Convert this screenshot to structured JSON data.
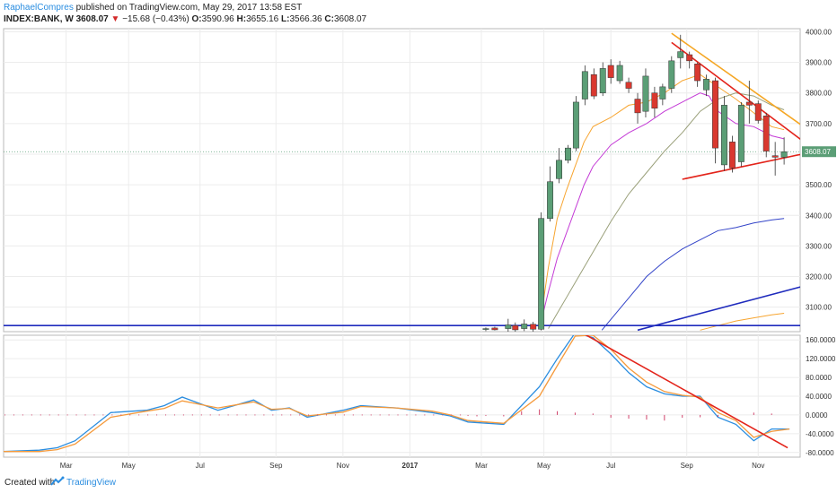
{
  "header": {
    "author": "RaphaelCompres",
    "published_text": " published on TradingView.com, May 29, 2017 13:58 EST",
    "symbol": "INDEX:BANK",
    "interval": ", W",
    "last_price": "3608.07",
    "change_arrow": "▼",
    "change": "−15.68 (−0.43%)",
    "open_label": "O:",
    "open": "3590.96",
    "high_label": "H:",
    "high": "3655.16",
    "low_label": "L:",
    "low": "3566.36",
    "close_label": "C:",
    "close": "3608.07"
  },
  "footer": {
    "created_with": "Created with",
    "brand": "TradingView"
  },
  "colors": {
    "up": "#5b9e76",
    "down": "#d9382f",
    "red_line": "#e3241b",
    "orange_line": "#f5a623",
    "blue_line": "#1f2bbd",
    "ma_orange": "#f7a530",
    "ma_purple": "#c43bd6",
    "ma_olive": "#9aa07a",
    "ma_blue": "#3344c8",
    "ind_blue": "#2a8de0",
    "ind_orange": "#f59a3c",
    "histogram": "#d0426a"
  },
  "chart_data": [
    {
      "type": "candlestick",
      "title": "INDEX:BANK, W",
      "price_ticks": [
        "4000.00",
        "3900.00",
        "3800.00",
        "3700.00",
        "3600.00",
        "3500.00",
        "3400.00",
        "3300.00",
        "3200.00",
        "3100.00"
      ],
      "ylim": [
        3020,
        4010
      ],
      "last_price_label": "3608.07",
      "x_ticks": [
        "Mar",
        "May",
        "Jul",
        "Sep",
        "Nov",
        "2017",
        "Mar",
        "May",
        "Jul",
        "Sep",
        "Nov"
      ],
      "candles": [
        {
          "x": 54,
          "o": 3028,
          "h": 3034,
          "l": 3022,
          "c": 3030
        },
        {
          "x": 55,
          "o": 3032,
          "h": 3036,
          "l": 3024,
          "c": 3026
        },
        {
          "x": 56.5,
          "o": 3030,
          "h": 3062,
          "l": 3020,
          "c": 3042
        },
        {
          "x": 57.3,
          "o": 3040,
          "h": 3050,
          "l": 3020,
          "c": 3026
        },
        {
          "x": 58.3,
          "o": 3030,
          "h": 3060,
          "l": 3022,
          "c": 3045
        },
        {
          "x": 59.3,
          "o": 3044,
          "h": 3052,
          "l": 3018,
          "c": 3028
        },
        {
          "x": 60.2,
          "o": 3028,
          "h": 3410,
          "l": 3024,
          "c": 3390
        },
        {
          "x": 61.2,
          "o": 3390,
          "h": 3560,
          "l": 3380,
          "c": 3510
        },
        {
          "x": 62.2,
          "o": 3520,
          "h": 3620,
          "l": 3505,
          "c": 3580
        },
        {
          "x": 63.2,
          "o": 3580,
          "h": 3630,
          "l": 3570,
          "c": 3620
        },
        {
          "x": 64.1,
          "o": 3620,
          "h": 3790,
          "l": 3610,
          "c": 3770
        },
        {
          "x": 65.1,
          "o": 3780,
          "h": 3890,
          "l": 3760,
          "c": 3870
        },
        {
          "x": 66.1,
          "o": 3860,
          "h": 3880,
          "l": 3780,
          "c": 3790
        },
        {
          "x": 67.1,
          "o": 3800,
          "h": 3900,
          "l": 3790,
          "c": 3880
        },
        {
          "x": 68.0,
          "o": 3890,
          "h": 3910,
          "l": 3830,
          "c": 3850
        },
        {
          "x": 69.0,
          "o": 3840,
          "h": 3905,
          "l": 3830,
          "c": 3890
        },
        {
          "x": 70.0,
          "o": 3835,
          "h": 3850,
          "l": 3800,
          "c": 3815
        },
        {
          "x": 71.0,
          "o": 3780,
          "h": 3800,
          "l": 3700,
          "c": 3735
        },
        {
          "x": 71.9,
          "o": 3740,
          "h": 3880,
          "l": 3720,
          "c": 3855
        },
        {
          "x": 72.9,
          "o": 3800,
          "h": 3820,
          "l": 3720,
          "c": 3750
        },
        {
          "x": 73.8,
          "o": 3780,
          "h": 3830,
          "l": 3760,
          "c": 3820
        },
        {
          "x": 74.8,
          "o": 3815,
          "h": 3920,
          "l": 3800,
          "c": 3905
        },
        {
          "x": 75.8,
          "o": 3915,
          "h": 3990,
          "l": 3880,
          "c": 3935
        },
        {
          "x": 76.8,
          "o": 3925,
          "h": 3935,
          "l": 3880,
          "c": 3905
        },
        {
          "x": 77.7,
          "o": 3895,
          "h": 3900,
          "l": 3820,
          "c": 3840
        },
        {
          "x": 78.7,
          "o": 3810,
          "h": 3860,
          "l": 3790,
          "c": 3845
        },
        {
          "x": 79.7,
          "o": 3840,
          "h": 3850,
          "l": 3570,
          "c": 3620
        },
        {
          "x": 80.7,
          "o": 3565,
          "h": 3790,
          "l": 3545,
          "c": 3760
        },
        {
          "x": 81.6,
          "o": 3640,
          "h": 3660,
          "l": 3540,
          "c": 3555
        },
        {
          "x": 82.6,
          "o": 3575,
          "h": 3770,
          "l": 3560,
          "c": 3760
        },
        {
          "x": 83.5,
          "o": 3770,
          "h": 3840,
          "l": 3700,
          "c": 3760
        },
        {
          "x": 84.5,
          "o": 3765,
          "h": 3775,
          "l": 3700,
          "c": 3710
        },
        {
          "x": 85.4,
          "o": 3725,
          "h": 3735,
          "l": 3590,
          "c": 3610
        },
        {
          "x": 86.4,
          "o": 3595,
          "h": 3640,
          "l": 3530,
          "c": 3590
        },
        {
          "x": 87.4,
          "o": 3590,
          "h": 3655,
          "l": 3566,
          "c": 3608
        }
      ],
      "moving_averages": [
        {
          "name": "ma-orange",
          "points": [
            [
              60,
              3030
            ],
            [
              61,
              3230
            ],
            [
              62,
              3390
            ],
            [
              63,
              3480
            ],
            [
              64,
              3560
            ],
            [
              65,
              3640
            ],
            [
              66,
              3690
            ],
            [
              68,
              3720
            ],
            [
              70,
              3760
            ],
            [
              72,
              3770
            ],
            [
              74,
              3800
            ],
            [
              76,
              3840
            ],
            [
              78,
              3860
            ],
            [
              80,
              3820
            ],
            [
              82,
              3780
            ],
            [
              84,
              3735
            ],
            [
              86,
              3690
            ],
            [
              87.4,
              3680
            ]
          ]
        },
        {
          "name": "ma-purple",
          "points": [
            [
              60,
              3030
            ],
            [
              61,
              3150
            ],
            [
              62,
              3260
            ],
            [
              63,
              3340
            ],
            [
              64,
              3420
            ],
            [
              65,
              3500
            ],
            [
              66,
              3560
            ],
            [
              68,
              3630
            ],
            [
              70,
              3670
            ],
            [
              72,
              3700
            ],
            [
              74,
              3740
            ],
            [
              76,
              3770
            ],
            [
              78,
              3800
            ],
            [
              79,
              3790
            ],
            [
              80,
              3740
            ],
            [
              82,
              3700
            ],
            [
              84,
              3690
            ],
            [
              86,
              3660
            ],
            [
              87.4,
              3650
            ]
          ]
        },
        {
          "name": "ma-olive",
          "points": [
            [
              61,
              3030
            ],
            [
              62,
              3080
            ],
            [
              64,
              3180
            ],
            [
              66,
              3280
            ],
            [
              68,
              3380
            ],
            [
              70,
              3470
            ],
            [
              72,
              3540
            ],
            [
              74,
              3610
            ],
            [
              76,
              3670
            ],
            [
              78,
              3740
            ],
            [
              80,
              3780
            ],
            [
              82,
              3800
            ],
            [
              84,
              3790
            ],
            [
              86,
              3760
            ],
            [
              87.4,
              3745
            ]
          ]
        },
        {
          "name": "ma-blue",
          "points": [
            [
              67,
              3025
            ],
            [
              68,
              3060
            ],
            [
              70,
              3130
            ],
            [
              72,
              3200
            ],
            [
              74,
              3250
            ],
            [
              76,
              3290
            ],
            [
              78,
              3320
            ],
            [
              80,
              3350
            ],
            [
              82,
              3360
            ],
            [
              84,
              3375
            ],
            [
              86,
              3385
            ],
            [
              87.4,
              3390
            ]
          ]
        },
        {
          "name": "ma-orange-long",
          "points": [
            [
              78,
              3025
            ],
            [
              80,
              3040
            ],
            [
              82,
              3055
            ],
            [
              84,
              3065
            ],
            [
              86,
              3075
            ],
            [
              87.4,
              3080
            ]
          ]
        }
      ],
      "trendlines": [
        {
          "name": "upper-red",
          "color": "red",
          "points": [
            [
              74.8,
              3965
            ],
            [
              91,
              3610
            ]
          ]
        },
        {
          "name": "lower-red",
          "color": "red",
          "points": [
            [
              76,
              3518
            ],
            [
              93,
              3622
            ]
          ]
        },
        {
          "name": "upper-orange",
          "color": "orange",
          "points": [
            [
              74.8,
              3995
            ],
            [
              92,
              3640
            ]
          ]
        },
        {
          "name": "lower-blue-diag",
          "color": "blue",
          "points": [
            [
              71,
              3025
            ],
            [
              122,
              3420
            ]
          ]
        },
        {
          "name": "horizontal-blue",
          "color": "blue",
          "points": [
            [
              0,
              3040
            ],
            [
              122,
              3040
            ]
          ]
        }
      ]
    },
    {
      "type": "line",
      "title": "",
      "yticks": [
        "160.0000",
        "120.0000",
        "80.0000",
        "40.0000",
        "0.0000",
        "-40.0000",
        "-80.0000"
      ],
      "ylim": [
        -90,
        170
      ],
      "series": [
        {
          "name": "",
          "color": "blue",
          "x": [
            0,
            4,
            6,
            8,
            12,
            16,
            18,
            20,
            24,
            28,
            30,
            32,
            34,
            38,
            40,
            44,
            48,
            50,
            52,
            56,
            60,
            62,
            64,
            66,
            68,
            70,
            72,
            74,
            76,
            78,
            80,
            82,
            84,
            86,
            88
          ],
          "values": [
            -78,
            -75,
            -70,
            -55,
            5,
            10,
            20,
            38,
            10,
            32,
            10,
            15,
            -5,
            10,
            20,
            15,
            5,
            -2,
            -15,
            -20,
            60,
            120,
            175,
            165,
            130,
            90,
            60,
            45,
            40,
            40,
            -5,
            -20,
            -55,
            -30,
            -30
          ]
        },
        {
          "name": "",
          "color": "orange",
          "x": [
            0,
            4,
            6,
            8,
            12,
            16,
            18,
            20,
            24,
            28,
            30,
            32,
            34,
            38,
            40,
            44,
            48,
            50,
            52,
            56,
            60,
            62,
            64,
            66,
            68,
            70,
            72,
            74,
            76,
            78,
            80,
            82,
            84,
            86,
            88
          ],
          "values": [
            -78,
            -78,
            -74,
            -62,
            -5,
            8,
            14,
            30,
            15,
            28,
            12,
            14,
            -2,
            6,
            18,
            15,
            8,
            0,
            -12,
            -18,
            40,
            105,
            168,
            170,
            140,
            100,
            70,
            50,
            42,
            38,
            5,
            -12,
            -48,
            -35,
            -30
          ]
        },
        {
          "name": "",
          "color": "histogram",
          "x": [
            52,
            53,
            54,
            56,
            58,
            60,
            62,
            64,
            66,
            68,
            70,
            72,
            74,
            76,
            78,
            80,
            82,
            84,
            86
          ],
          "values": [
            -2,
            -3,
            -2,
            -3,
            8,
            12,
            8,
            5,
            3,
            -6,
            -8,
            -10,
            -12,
            -6,
            -5,
            -4,
            0,
            5,
            3
          ]
        }
      ],
      "trendlines": [
        {
          "name": "osc-red",
          "points": [
            [
              64.8,
              175
            ],
            [
              87.8,
              -70
            ]
          ]
        }
      ]
    }
  ]
}
